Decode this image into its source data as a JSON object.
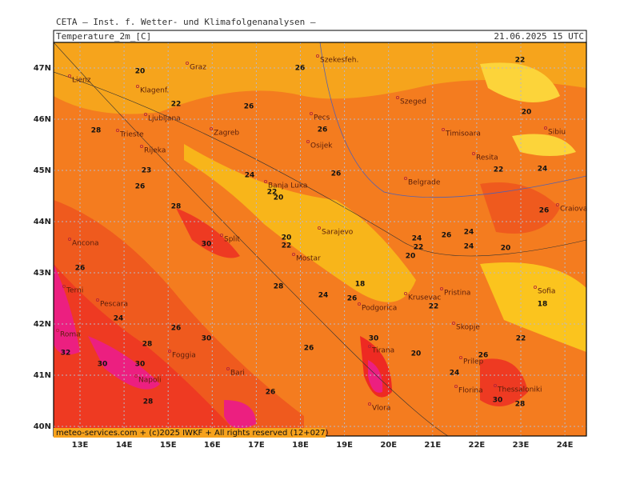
{
  "header": {
    "source": "CETA — Inst. f. Wetter- und Klimafolgenanalysen —",
    "title": "Temperature_2m_[C]",
    "timestamp": "21.06.2025 15 UTC",
    "footer": "meteo-services.com + (c)2025 IWKF + All rights reserved (12+027)"
  },
  "map": {
    "lat_ticks": [
      "47N",
      "46N",
      "45N",
      "44N",
      "43N",
      "42N",
      "41N",
      "40N"
    ],
    "lon_ticks": [
      "13E",
      "14E",
      "15E",
      "16E",
      "17E",
      "18E",
      "19E",
      "20E",
      "21E",
      "22E",
      "23E",
      "24E"
    ],
    "cities": [
      "Graz",
      "Klagenf.",
      "Ljubljana",
      "Zagreb",
      "Trieste",
      "Rijeka",
      "Szekesfeh.",
      "Pecs",
      "Szeged",
      "Osijek",
      "Timisoara",
      "Resita",
      "Sibiu",
      "Banja Luka",
      "Belgrade",
      "Craiova",
      "Sarajevo",
      "Split",
      "Mostar",
      "Ancona",
      "Terni",
      "Pescara",
      "Roma",
      "Podgorica",
      "Krusevac",
      "Pristina",
      "Sofia",
      "Skopje",
      "Prilep",
      "Foggia",
      "Bari",
      "Napoli",
      "Tirana",
      "Florina",
      "Thessaloniki",
      "Vlora",
      "Lienz"
    ],
    "contour_labels": [
      20,
      26,
      22,
      28,
      26,
      26,
      22,
      20,
      23,
      26,
      24,
      26,
      22,
      20,
      28,
      30,
      20,
      22,
      24,
      20,
      28,
      24,
      22,
      20,
      26,
      24,
      18,
      26,
      18,
      24,
      24,
      22,
      26,
      30,
      26,
      32,
      30,
      30,
      28,
      30,
      26,
      26,
      24,
      20,
      26,
      24,
      30,
      28,
      28,
      26,
      22,
      22
    ]
  }
}
